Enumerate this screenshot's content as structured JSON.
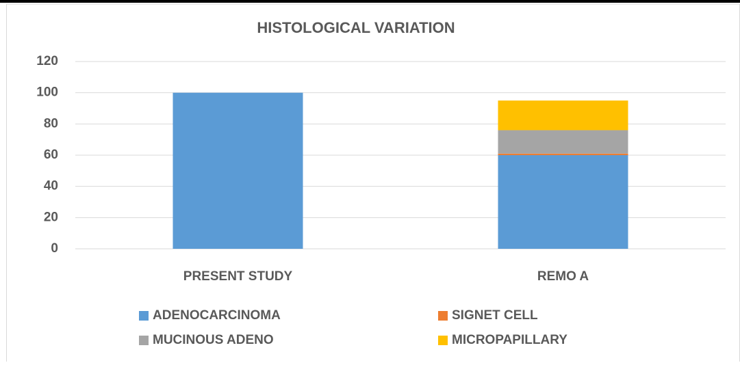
{
  "chart_data": {
    "type": "bar",
    "stacked": true,
    "title": "HISTOLOGICAL VARIATION",
    "categories": [
      "PRESENT STUDY",
      "REMO A"
    ],
    "series": [
      {
        "name": "ADENOCARCINOMA",
        "color": "#5b9bd5",
        "values": [
          100,
          60
        ]
      },
      {
        "name": "SIGNET CELL",
        "color": "#ed7d31",
        "values": [
          0,
          1
        ]
      },
      {
        "name": "MUCINOUS ADENO",
        "color": "#a5a5a5",
        "values": [
          0,
          15
        ]
      },
      {
        "name": "MICROPAPILLARY",
        "color": "#ffc000",
        "values": [
          0,
          19
        ]
      }
    ],
    "ylim": [
      0,
      120
    ],
    "yticks": [
      0,
      20,
      40,
      60,
      80,
      100,
      120
    ],
    "grid": true
  }
}
